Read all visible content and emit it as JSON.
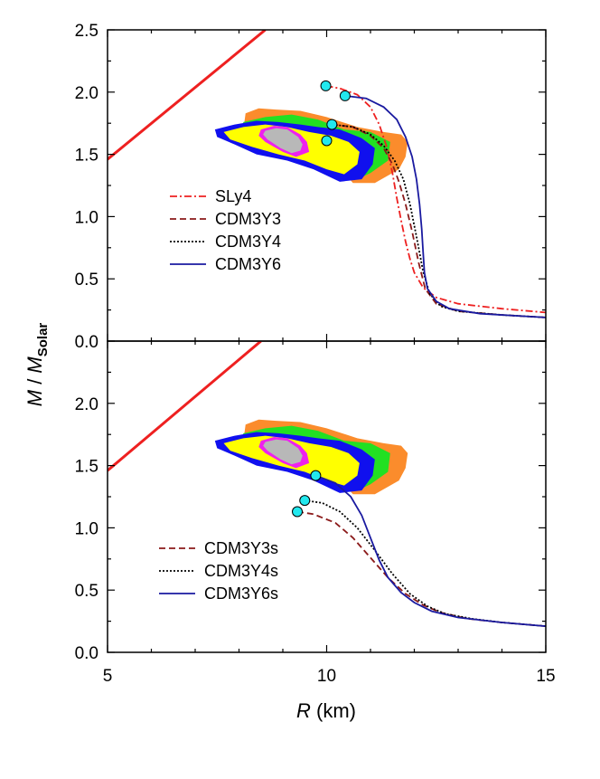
{
  "chart_data": {
    "type": "line",
    "xlabel": {
      "var": "R",
      "unit": " (km)"
    },
    "ylabel": {
      "var": "M",
      "sep": " / ",
      "var2": "M",
      "sub": "Solar"
    },
    "xlim": [
      5,
      15
    ],
    "x_ticks": [
      5,
      10,
      15
    ],
    "colors": {
      "causality": "#ee2020",
      "orange": "#fb8c2c",
      "green": "#22e022",
      "blue": "#1010ee",
      "yellow": "#ffff00",
      "magenta": "#ee22ee",
      "gray": "#b8b8b8",
      "marker": "#22e8ee"
    },
    "panels": [
      {
        "id": "top",
        "ylim": [
          0,
          2.5
        ],
        "y_ticks": [
          "0.0",
          "0.5",
          "1.0",
          "1.5",
          "2.0",
          "2.5"
        ],
        "causality_line": {
          "x": [
            5,
            8.6
          ],
          "y": [
            1.46,
            2.5
          ]
        },
        "series": [
          {
            "name": "SLy4",
            "style": "dashdot",
            "color": "#ee2020",
            "x": [
              9.98,
              10.3,
              10.7,
              11.0,
              11.2,
              11.38,
              11.5,
              11.6,
              11.7,
              11.8,
              11.9,
              12.0,
              12.2,
              12.5,
              13.0,
              14.0,
              15.0
            ],
            "y": [
              2.05,
              2.03,
              1.98,
              1.88,
              1.74,
              1.55,
              1.35,
              1.15,
              0.97,
              0.8,
              0.66,
              0.55,
              0.43,
              0.35,
              0.3,
              0.26,
              0.23
            ]
          },
          {
            "name": "CDM3Y3",
            "style": "dashed",
            "color": "#8b1a1a",
            "x": [
              10.12,
              10.6,
              11.0,
              11.3,
              11.5,
              11.65,
              11.8,
              11.95,
              12.1,
              12.25,
              12.5,
              13.0,
              14.0,
              15.0
            ],
            "y": [
              1.74,
              1.72,
              1.65,
              1.55,
              1.42,
              1.28,
              1.1,
              0.88,
              0.63,
              0.42,
              0.3,
              0.24,
              0.21,
              0.19
            ]
          },
          {
            "name": "CDM3Y4",
            "style": "dotted",
            "color": "#000000",
            "x": [
              10.12,
              10.6,
              11.0,
              11.3,
              11.55,
              11.75,
              11.9,
              12.05,
              12.2,
              12.35,
              12.6,
              13.0,
              14.0,
              15.0
            ],
            "y": [
              1.74,
              1.72,
              1.66,
              1.57,
              1.45,
              1.3,
              1.1,
              0.84,
              0.56,
              0.38,
              0.28,
              0.24,
              0.21,
              0.19
            ]
          },
          {
            "name": "CDM3Y6",
            "style": "solid",
            "color": "#1a1aa0",
            "x": [
              10.42,
              10.9,
              11.3,
              11.6,
              11.8,
              11.95,
              12.05,
              12.12,
              12.17,
              12.2,
              12.23,
              12.3,
              12.5,
              12.8,
              13.5,
              14.5,
              15.0
            ],
            "y": [
              1.97,
              1.95,
              1.88,
              1.78,
              1.64,
              1.48,
              1.3,
              1.1,
              0.9,
              0.72,
              0.55,
              0.42,
              0.32,
              0.26,
              0.22,
              0.2,
              0.19
            ]
          }
        ],
        "markers": [
          {
            "x": 9.98,
            "y": 2.05
          },
          {
            "x": 10.42,
            "y": 1.97
          },
          {
            "x": 10.12,
            "y": 1.74
          },
          {
            "x": 10.0,
            "y": 1.61
          }
        ]
      },
      {
        "id": "bottom",
        "ylim": [
          0,
          2.5
        ],
        "y_ticks": [
          "0.0",
          "0.5",
          "1.0",
          "1.5",
          "2.0"
        ],
        "causality_line": {
          "x": [
            5,
            8.5
          ],
          "y": [
            1.46,
            2.5
          ]
        },
        "series": [
          {
            "name": "CDM3Y3s",
            "style": "dashed",
            "color": "#8b1a1a",
            "x": [
              9.33,
              9.7,
              10.2,
              10.6,
              11.0,
              11.4,
              11.8,
              12.2,
              12.6,
              13.2,
              14.0,
              15.0
            ],
            "y": [
              1.13,
              1.11,
              1.04,
              0.92,
              0.76,
              0.6,
              0.47,
              0.38,
              0.32,
              0.27,
              0.24,
              0.21
            ]
          },
          {
            "name": "CDM3Y4s",
            "style": "dotted",
            "color": "#000000",
            "x": [
              9.5,
              9.9,
              10.3,
              10.7,
              11.1,
              11.5,
              11.9,
              12.3,
              12.7,
              13.3,
              14.0,
              15.0
            ],
            "y": [
              1.22,
              1.2,
              1.13,
              1.0,
              0.82,
              0.63,
              0.47,
              0.37,
              0.31,
              0.27,
              0.24,
              0.21
            ]
          },
          {
            "name": "CDM3Y6s",
            "style": "solid",
            "color": "#1a1aa0",
            "x": [
              9.75,
              10.2,
              10.55,
              10.8,
              11.0,
              11.2,
              11.4,
              11.7,
              12.0,
              12.4,
              13.0,
              14.0,
              15.0
            ],
            "y": [
              1.42,
              1.36,
              1.25,
              1.1,
              0.92,
              0.74,
              0.6,
              0.48,
              0.4,
              0.33,
              0.28,
              0.24,
              0.21
            ]
          }
        ],
        "markers": [
          {
            "x": 9.75,
            "y": 1.42
          },
          {
            "x": 9.5,
            "y": 1.22
          },
          {
            "x": 9.33,
            "y": 1.13
          }
        ]
      }
    ],
    "constraint_regions": {
      "orange": [
        [
          8.15,
          1.83
        ],
        [
          8.45,
          1.87
        ],
        [
          8.85,
          1.86
        ],
        [
          9.4,
          1.85
        ],
        [
          10.0,
          1.8
        ],
        [
          10.7,
          1.72
        ],
        [
          11.3,
          1.68
        ],
        [
          11.7,
          1.66
        ],
        [
          11.85,
          1.6
        ],
        [
          11.8,
          1.48
        ],
        [
          11.65,
          1.38
        ],
        [
          11.1,
          1.27
        ],
        [
          10.6,
          1.27
        ],
        [
          10.4,
          1.35
        ],
        [
          10.1,
          1.45
        ],
        [
          9.6,
          1.5
        ],
        [
          9.0,
          1.55
        ],
        [
          8.4,
          1.62
        ],
        [
          8.1,
          1.7
        ]
      ],
      "green": [
        [
          8.1,
          1.76
        ],
        [
          8.6,
          1.8
        ],
        [
          9.2,
          1.82
        ],
        [
          9.8,
          1.78
        ],
        [
          10.4,
          1.7
        ],
        [
          11.0,
          1.68
        ],
        [
          11.45,
          1.6
        ],
        [
          11.4,
          1.45
        ],
        [
          11.0,
          1.35
        ],
        [
          10.7,
          1.3
        ],
        [
          10.4,
          1.35
        ],
        [
          10.1,
          1.45
        ],
        [
          9.6,
          1.5
        ],
        [
          9.0,
          1.55
        ],
        [
          8.4,
          1.62
        ],
        [
          8.05,
          1.68
        ]
      ],
      "blue": [
        [
          7.45,
          1.7
        ],
        [
          7.9,
          1.74
        ],
        [
          8.4,
          1.77
        ],
        [
          8.9,
          1.76
        ],
        [
          9.4,
          1.74
        ],
        [
          9.8,
          1.72
        ],
        [
          10.3,
          1.7
        ],
        [
          10.8,
          1.63
        ],
        [
          11.1,
          1.55
        ],
        [
          11.05,
          1.42
        ],
        [
          10.8,
          1.3
        ],
        [
          10.3,
          1.28
        ],
        [
          9.7,
          1.38
        ],
        [
          9.1,
          1.45
        ],
        [
          8.4,
          1.5
        ],
        [
          7.9,
          1.58
        ],
        [
          7.5,
          1.64
        ]
      ],
      "yellow": [
        [
          7.65,
          1.68
        ],
        [
          8.1,
          1.72
        ],
        [
          8.6,
          1.74
        ],
        [
          9.1,
          1.72
        ],
        [
          9.6,
          1.68
        ],
        [
          10.1,
          1.65
        ],
        [
          10.5,
          1.6
        ],
        [
          10.75,
          1.52
        ],
        [
          10.7,
          1.42
        ],
        [
          10.4,
          1.34
        ],
        [
          10.0,
          1.38
        ],
        [
          9.5,
          1.45
        ],
        [
          8.9,
          1.5
        ],
        [
          8.3,
          1.56
        ],
        [
          7.8,
          1.62
        ]
      ],
      "magenta": [
        [
          8.5,
          1.7
        ],
        [
          8.8,
          1.73
        ],
        [
          9.1,
          1.72
        ],
        [
          9.4,
          1.66
        ],
        [
          9.55,
          1.6
        ],
        [
          9.6,
          1.52
        ],
        [
          9.3,
          1.48
        ],
        [
          9.0,
          1.52
        ],
        [
          8.6,
          1.6
        ],
        [
          8.45,
          1.65
        ]
      ],
      "gray": [
        [
          8.6,
          1.69
        ],
        [
          8.85,
          1.71
        ],
        [
          9.1,
          1.7
        ],
        [
          9.35,
          1.64
        ],
        [
          9.45,
          1.58
        ],
        [
          9.4,
          1.53
        ],
        [
          9.2,
          1.51
        ],
        [
          8.95,
          1.55
        ],
        [
          8.65,
          1.62
        ],
        [
          8.55,
          1.66
        ]
      ]
    }
  }
}
